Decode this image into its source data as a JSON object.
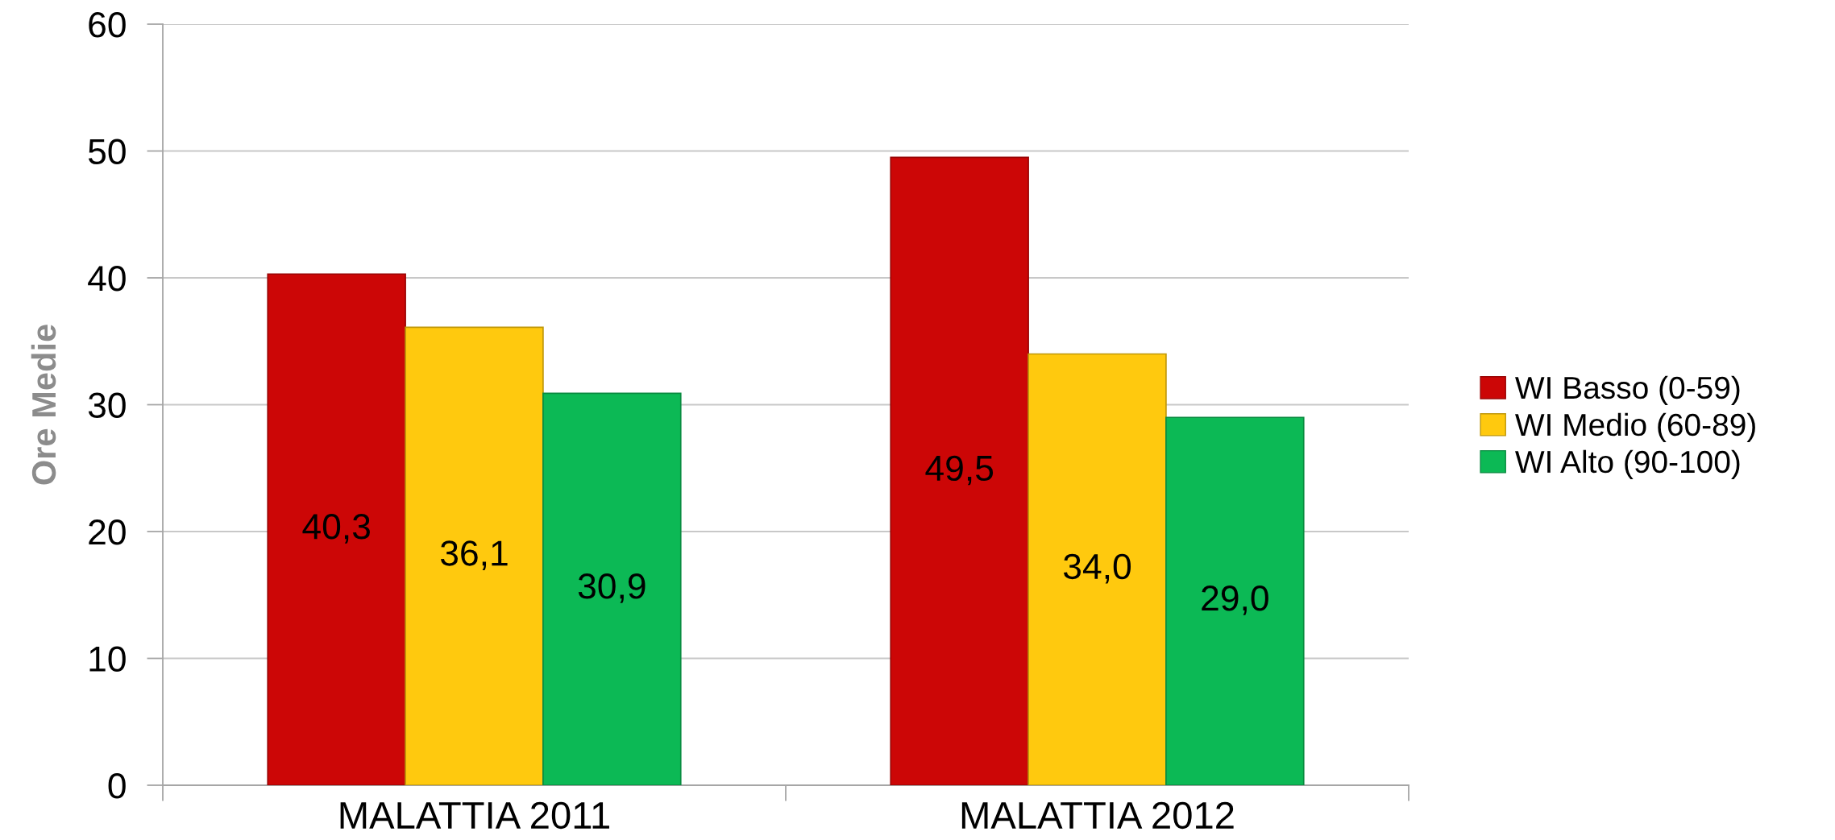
{
  "chart_data": {
    "type": "bar",
    "categories": [
      "MALATTIA 2011",
      "MALATTIA 2012"
    ],
    "ylabel": "Ore Medie",
    "ylim": [
      0,
      60
    ],
    "yticks": [
      0,
      10,
      20,
      30,
      40,
      50,
      60
    ],
    "grid": "y",
    "legend": "right",
    "series": [
      {
        "name": "WI Basso (0-59)",
        "color": "#cc0606",
        "values": [
          40.3,
          49.5
        ],
        "value_labels": [
          "40,3",
          "49,5"
        ]
      },
      {
        "name": "WI Medio (60-89)",
        "color": "#ffc90e",
        "values": [
          36.1,
          34.0
        ],
        "value_labels": [
          "36,1",
          "34,0"
        ]
      },
      {
        "name": "WI Alto (90-100)",
        "color": "#0cb955",
        "values": [
          30.9,
          29.0
        ],
        "value_labels": [
          "30,9",
          "29,0"
        ]
      }
    ]
  }
}
